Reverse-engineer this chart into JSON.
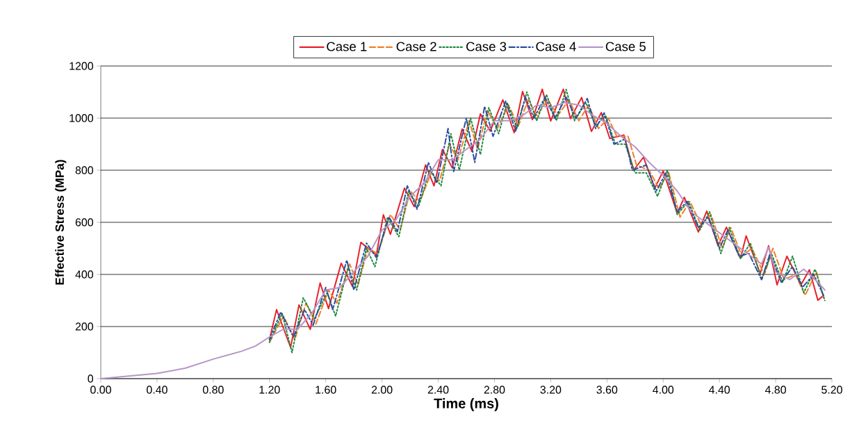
{
  "chart_data": {
    "type": "line",
    "xlabel": "Time (ms)",
    "ylabel": "Effective Stress (MPa)",
    "xlim": [
      0,
      5.2
    ],
    "ylim": [
      0,
      1200
    ],
    "xticks": [
      {
        "value": 0,
        "label": "0.00"
      },
      {
        "value": 0.4,
        "label": "0.40"
      },
      {
        "value": 0.8,
        "label": "0.80"
      },
      {
        "value": 1.2,
        "label": "1.20"
      },
      {
        "value": 1.6,
        "label": "1.60"
      },
      {
        "value": 2.0,
        "label": "2.00"
      },
      {
        "value": 2.4,
        "label": "2.40"
      },
      {
        "value": 2.8,
        "label": "2.80"
      },
      {
        "value": 3.2,
        "label": "3.20"
      },
      {
        "value": 3.6,
        "label": "3.60"
      },
      {
        "value": 4.0,
        "label": "4.00"
      },
      {
        "value": 4.4,
        "label": "4.40"
      },
      {
        "value": 4.8,
        "label": "4.80"
      },
      {
        "value": 5.2,
        "label": "5.20"
      }
    ],
    "yticks": [
      0,
      200,
      400,
      600,
      800,
      1000,
      1200
    ],
    "grid": "y",
    "legend": "top",
    "marker": "none",
    "series": [
      {
        "name": "Case 1",
        "color": "#e8202a",
        "line_style": "solid",
        "x": [
          1.2,
          1.25,
          1.35,
          1.41,
          1.49,
          1.56,
          1.62,
          1.71,
          1.79,
          1.85,
          1.96,
          2.01,
          2.06,
          2.16,
          2.23,
          2.31,
          2.37,
          2.43,
          2.5,
          2.57,
          2.64,
          2.7,
          2.77,
          2.86,
          2.94,
          3.0,
          3.07,
          3.14,
          3.2,
          3.29,
          3.34,
          3.42,
          3.49,
          3.56,
          3.62,
          3.72,
          3.79,
          3.86,
          3.94,
          4.0,
          4.1,
          4.15,
          4.25,
          4.31,
          4.39,
          4.45,
          4.55,
          4.59,
          4.69,
          4.75,
          4.81,
          4.88,
          4.98,
          5.04,
          5.1,
          5.14
        ],
        "values": [
          150,
          265,
          120,
          283,
          189,
          367,
          269,
          443,
          354,
          523,
          474,
          629,
          554,
          731,
          660,
          820,
          740,
          880,
          809,
          958,
          872,
          1016,
          950,
          1070,
          944,
          1102,
          994,
          1111,
          989,
          1111,
          998,
          1079,
          949,
          1021,
          922,
          935,
          800,
          850,
          731,
          797,
          634,
          696,
          563,
          643,
          510,
          581,
          462,
          548,
          404,
          510,
          360,
          470,
          360,
          418,
          301,
          319
        ]
      },
      {
        "name": "Case 2",
        "color": "#f07f28",
        "line_style": "dashed",
        "x": [
          1.2,
          1.3,
          1.38,
          1.46,
          1.53,
          1.62,
          1.68,
          1.77,
          1.83,
          1.9,
          1.97,
          2.06,
          2.13,
          2.2,
          2.27,
          2.35,
          2.41,
          2.48,
          2.54,
          2.62,
          2.68,
          2.75,
          2.82,
          2.9,
          2.97,
          3.04,
          3.1,
          3.18,
          3.25,
          3.33,
          3.4,
          3.47,
          3.54,
          3.61,
          3.67,
          3.75,
          3.81,
          3.9,
          3.97,
          4.04,
          4.12,
          4.19,
          4.27,
          4.34,
          4.42,
          4.48,
          4.56,
          4.63,
          4.72,
          4.78,
          4.86,
          4.94,
          5.01,
          5.09,
          5.14
        ],
        "values": [
          140,
          240,
          150,
          290,
          210,
          340,
          290,
          440,
          360,
          500,
          480,
          630,
          570,
          720,
          680,
          790,
          760,
          900,
          840,
          990,
          880,
          1030,
          960,
          1050,
          970,
          1070,
          1010,
          1070,
          1010,
          1070,
          990,
          1050,
          960,
          1000,
          930,
          930,
          820,
          800,
          730,
          790,
          620,
          680,
          590,
          630,
          500,
          580,
          470,
          500,
          400,
          500,
          380,
          400,
          320,
          410,
          310
        ]
      },
      {
        "name": "Case 3",
        "color": "#1e8a3c",
        "line_style": "dotted",
        "x": [
          1.2,
          1.29,
          1.36,
          1.44,
          1.52,
          1.61,
          1.67,
          1.76,
          1.82,
          1.89,
          1.95,
          2.04,
          2.12,
          2.19,
          2.26,
          2.34,
          2.42,
          2.49,
          2.55,
          2.63,
          2.7,
          2.76,
          2.83,
          2.89,
          2.96,
          3.03,
          3.1,
          3.17,
          3.24,
          3.31,
          3.37,
          3.45,
          3.52,
          3.59,
          3.66,
          3.73,
          3.8,
          3.88,
          3.96,
          4.03,
          4.1,
          4.18,
          4.26,
          4.33,
          4.41,
          4.47,
          4.55,
          4.62,
          4.7,
          4.77,
          4.85,
          4.92,
          5.0,
          5.08,
          5.15
        ],
        "values": [
          140,
          250,
          100,
          310,
          230,
          330,
          240,
          430,
          340,
          500,
          430,
          620,
          545,
          720,
          660,
          800,
          740,
          940,
          800,
          1000,
          860,
          1040,
          940,
          1060,
          960,
          1100,
          990,
          1090,
          990,
          1110,
          990,
          1060,
          970,
          1010,
          900,
          900,
          790,
          790,
          700,
          800,
          630,
          680,
          570,
          640,
          480,
          580,
          460,
          520,
          380,
          480,
          370,
          470,
          330,
          420,
          300
        ]
      },
      {
        "name": "Case 4",
        "color": "#2b4ea0",
        "line_style": "dashdot",
        "x": [
          1.2,
          1.28,
          1.37,
          1.45,
          1.51,
          1.6,
          1.65,
          1.75,
          1.8,
          1.89,
          1.96,
          2.05,
          2.11,
          2.18,
          2.25,
          2.33,
          2.39,
          2.47,
          2.51,
          2.6,
          2.66,
          2.73,
          2.79,
          2.88,
          2.95,
          3.02,
          3.08,
          3.16,
          3.23,
          3.31,
          3.38,
          3.46,
          3.52,
          3.58,
          3.65,
          3.73,
          3.78,
          3.88,
          3.95,
          4.02,
          4.1,
          4.17,
          4.25,
          4.32,
          4.4,
          4.46,
          4.54,
          4.61,
          4.7,
          4.76,
          4.84,
          4.92,
          4.99,
          5.07,
          5.14
        ],
        "values": [
          150,
          256,
          160,
          265,
          205,
          350,
          265,
          455,
          340,
          520,
          465,
          620,
          565,
          740,
          650,
          830,
          750,
          960,
          795,
          1000,
          830,
          1045,
          930,
          1065,
          950,
          1080,
          1000,
          1080,
          1000,
          1080,
          1000,
          1075,
          960,
          1020,
          900,
          920,
          800,
          820,
          720,
          790,
          640,
          680,
          580,
          620,
          500,
          570,
          470,
          480,
          380,
          480,
          370,
          430,
          350,
          400,
          320
        ]
      },
      {
        "name": "Case 5",
        "color": "#b695c8",
        "line_style": "solid",
        "x": [
          0,
          0.2,
          0.4,
          0.6,
          0.8,
          1.0,
          1.1,
          1.2,
          1.3,
          1.4,
          1.5,
          1.6,
          1.7,
          1.8,
          1.9,
          2.0,
          2.1,
          2.2,
          2.3,
          2.4,
          2.5,
          2.6,
          2.7,
          2.8,
          2.9,
          3.0,
          3.1,
          3.2,
          3.3,
          3.4,
          3.5,
          3.6,
          3.7,
          3.8,
          3.9,
          4.0,
          4.1,
          4.2,
          4.3,
          4.4,
          4.5,
          4.6,
          4.7,
          4.75,
          4.8,
          4.9,
          5.0,
          5.1,
          5.15
        ],
        "values": [
          0,
          10,
          20,
          40,
          75,
          105,
          125,
          160,
          190,
          190,
          250,
          340,
          350,
          410,
          470,
          570,
          610,
          700,
          750,
          840,
          840,
          880,
          920,
          990,
          990,
          1010,
          1050,
          1040,
          1060,
          1050,
          1010,
          980,
          930,
          890,
          830,
          780,
          720,
          640,
          600,
          560,
          520,
          480,
          440,
          505,
          410,
          380,
          420,
          370,
          340
        ]
      }
    ]
  }
}
